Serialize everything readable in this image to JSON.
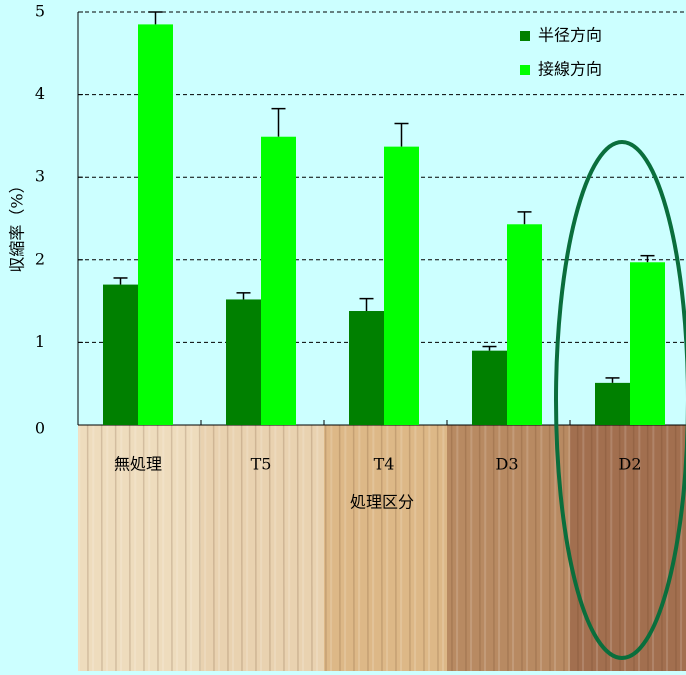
{
  "chart_data": {
    "type": "bar",
    "ylabel": "収縮率（%）",
    "xlabel": "処理区分",
    "categories": [
      "無処理",
      "T5",
      "T4",
      "D3",
      "D2"
    ],
    "series": [
      {
        "name": "半径方向",
        "color": "#008000",
        "values": [
          1.7,
          1.52,
          1.38,
          0.9,
          0.51
        ],
        "errors": [
          0.08,
          0.08,
          0.15,
          0.05,
          0.06
        ]
      },
      {
        "name": "接線方向",
        "color": "#00ff00",
        "values": [
          4.85,
          3.49,
          3.37,
          2.43,
          1.97
        ],
        "errors": [
          0.15,
          0.34,
          0.28,
          0.15,
          0.08
        ]
      }
    ],
    "ylim": [
      0,
      5
    ],
    "yticks": [
      0,
      1,
      2,
      3,
      4,
      5
    ],
    "grid": true,
    "legend": "upper right"
  }
}
